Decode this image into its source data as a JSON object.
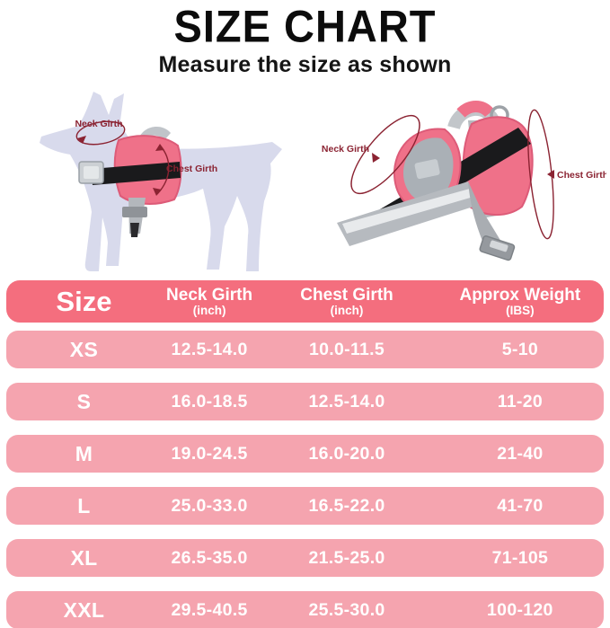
{
  "header": {
    "title": "SIZE CHART",
    "subtitle": "Measure the size as shown"
  },
  "illustrations": {
    "dog": {
      "description": "side view of dog wearing pink harness",
      "neck_label": "Neck Girth",
      "chest_label": "Chest Girth"
    },
    "harness": {
      "description": "pink dog harness product with straps",
      "neck_label": "Neck Girth",
      "chest_label": "Chest Girth"
    }
  },
  "table": {
    "columns": [
      {
        "label": "Size",
        "sub": ""
      },
      {
        "label": "Neck Girth",
        "sub": "(inch)"
      },
      {
        "label": "Chest Girth",
        "sub": "(inch)"
      },
      {
        "label": "Approx Weight",
        "sub": "(IBS)"
      }
    ],
    "rows": [
      {
        "size": "XS",
        "neck": "12.5-14.0",
        "chest": "10.0-11.5",
        "weight": "5-10"
      },
      {
        "size": "S",
        "neck": "16.0-18.5",
        "chest": "12.5-14.0",
        "weight": "11-20"
      },
      {
        "size": "M",
        "neck": "19.0-24.5",
        "chest": "16.0-20.0",
        "weight": "21-40"
      },
      {
        "size": "L",
        "neck": "25.0-33.0",
        "chest": "16.5-22.0",
        "weight": "41-70"
      },
      {
        "size": "XL",
        "neck": "26.5-35.0",
        "chest": "21.5-25.0",
        "weight": "71-105"
      },
      {
        "size": "XXL",
        "neck": "29.5-40.5",
        "chest": "25.5-30.0",
        "weight": "100-120"
      }
    ]
  },
  "chart_data": {
    "type": "table",
    "title": "SIZE CHART",
    "subtitle": "Measure the size as shown",
    "columns": [
      "Size",
      "Neck Girth (inch)",
      "Chest Girth (inch)",
      "Approx Weight (IBS)"
    ],
    "rows": [
      [
        "XS",
        "12.5-14.0",
        "10.0-11.5",
        "5-10"
      ],
      [
        "S",
        "16.0-18.5",
        "12.5-14.0",
        "11-20"
      ],
      [
        "M",
        "19.0-24.5",
        "16.0-20.0",
        "21-40"
      ],
      [
        "L",
        "25.0-33.0",
        "16.5-22.0",
        "41-70"
      ],
      [
        "XL",
        "26.5-35.0",
        "21.5-25.0",
        "71-105"
      ],
      [
        "XXL",
        "29.5-40.5",
        "25.5-30.0",
        "100-120"
      ]
    ]
  },
  "colors": {
    "header_row": "#f46e7e",
    "data_row": "#f5a4af",
    "row_text": "#ffffff",
    "title_text": "#0c0c0c",
    "annotation": "#8b2332",
    "dog_silhouette": "#d8daec",
    "harness_pink": "#ef7189",
    "strap_gray": "#b6babf",
    "strap_black": "#1a1a1c"
  }
}
